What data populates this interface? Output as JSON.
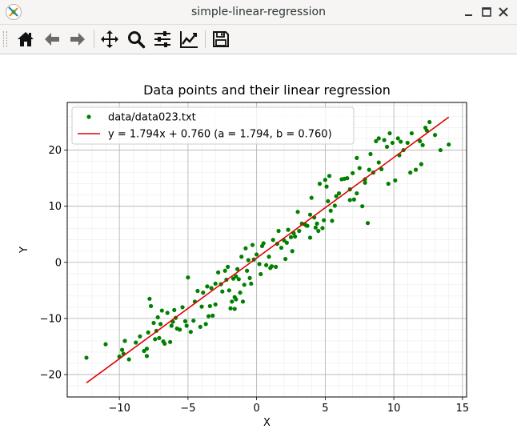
{
  "window": {
    "title": "simple-linear-regression",
    "controls": [
      "minimize",
      "maximize",
      "close"
    ]
  },
  "toolbar": {
    "buttons": [
      {
        "name": "home-button",
        "icon": "home-icon",
        "tooltip": "Home"
      },
      {
        "name": "back-button",
        "icon": "arrow-left-icon",
        "tooltip": "Back"
      },
      {
        "name": "forward-button",
        "icon": "arrow-right-icon",
        "tooltip": "Forward"
      },
      {
        "name": "pan-button",
        "icon": "move-icon",
        "tooltip": "Pan"
      },
      {
        "name": "zoom-button",
        "icon": "magnifier-icon",
        "tooltip": "Zoom"
      },
      {
        "name": "subplots-button",
        "icon": "sliders-icon",
        "tooltip": "Subplots"
      },
      {
        "name": "axes-button",
        "icon": "line-chart-icon",
        "tooltip": "Customize"
      },
      {
        "name": "save-button",
        "icon": "floppy-icon",
        "tooltip": "Save"
      }
    ]
  },
  "colors": {
    "points": "#008000",
    "fit_line": "#e00000",
    "grid_major": "#b0b0b0",
    "grid_minor": "#ececec"
  },
  "chart_data": {
    "type": "scatter",
    "title": "Data points and their linear regression",
    "xlabel": "X",
    "ylabel": "Y",
    "xlim": [
      -13.8,
      15.3
    ],
    "ylim": [
      -24,
      28.5
    ],
    "xticks": [
      -10,
      -5,
      0,
      5,
      10,
      15
    ],
    "yticks": [
      -20,
      -10,
      0,
      10,
      20
    ],
    "grid": "major and minor",
    "legend": "top-left",
    "series": [
      {
        "name": "data/data023.txt",
        "kind": "points",
        "x": [
          -12.4,
          -11.0,
          -9.8,
          -9.7,
          -9.6,
          -8.8,
          -8.5,
          -8.2,
          -8.0,
          -7.9,
          -7.8,
          -7.7,
          -7.5,
          -7.3,
          -7.2,
          -7.1,
          -7.0,
          -6.9,
          -6.7,
          -6.5,
          -6.3,
          -6.1,
          -6.0,
          -5.8,
          -5.6,
          -5.4,
          -5.2,
          -5.1,
          -5.0,
          -4.8,
          -4.5,
          -4.3,
          -4.1,
          -3.9,
          -3.7,
          -3.6,
          -3.5,
          -3.4,
          -3.3,
          -3.2,
          -3.0,
          -2.8,
          -2.6,
          -2.5,
          -2.3,
          -2.1,
          -2.0,
          -1.9,
          -1.8,
          -1.7,
          -1.6,
          -1.5,
          -1.4,
          -1.3,
          -1.2,
          -1.1,
          -1.0,
          -0.9,
          -0.8,
          -0.7,
          -0.6,
          -0.5,
          -0.4,
          -0.2,
          0.0,
          0.2,
          0.3,
          0.5,
          0.7,
          0.9,
          1.0,
          1.2,
          1.4,
          1.5,
          1.6,
          1.8,
          2.0,
          2.1,
          2.3,
          2.5,
          2.6,
          2.8,
          3.0,
          3.1,
          3.3,
          3.5,
          3.7,
          3.9,
          4.0,
          4.2,
          4.4,
          4.5,
          4.6,
          4.8,
          5.0,
          5.1,
          5.3,
          5.5,
          5.7,
          5.8,
          6.0,
          6.2,
          6.4,
          6.6,
          6.8,
          7.0,
          7.1,
          7.3,
          7.5,
          7.7,
          7.9,
          8.1,
          8.3,
          8.5,
          8.7,
          8.9,
          9.1,
          9.3,
          9.5,
          9.7,
          9.9,
          10.1,
          10.3,
          10.5,
          10.7,
          11.0,
          11.3,
          11.6,
          11.9,
          12.1,
          12.3,
          12.6,
          13.0,
          13.4,
          14.0,
          -8.0,
          -6.2,
          -4.6,
          -3.0,
          -1.6,
          0.4,
          2.2,
          3.9,
          5.4,
          7.3,
          8.9,
          10.4,
          12.0,
          -9.3,
          -7.4,
          -5.9,
          -2.2,
          1.1,
          2.7,
          4.9,
          6.8,
          9.6,
          11.2,
          -6.8,
          -0.3,
          3.6,
          8.2,
          12.4,
          -10.0,
          -1.5,
          5.2,
          7.9,
          -4.0,
          4.3
        ],
        "y": [
          -17.0,
          -14.6,
          -15.6,
          -16.3,
          -14.0,
          -14.3,
          -13.2,
          -15.8,
          -16.7,
          -12.5,
          -6.5,
          -7.8,
          -10.8,
          -12.2,
          -9.8,
          -13.5,
          -11.0,
          -8.6,
          -14.5,
          -9.0,
          -14.2,
          -10.6,
          -8.5,
          -11.8,
          -12.0,
          -8.0,
          -10.5,
          -11.3,
          -2.7,
          -12.4,
          -7.0,
          -5.1,
          -11.5,
          -5.4,
          -11.0,
          -4.3,
          -9.6,
          -7.8,
          -4.6,
          -9.5,
          -7.5,
          -1.8,
          -3.9,
          -5.2,
          -1.5,
          -0.8,
          -5.0,
          -8.2,
          -7.0,
          -2.9,
          -8.3,
          -6.6,
          -1.2,
          -3.0,
          -5.4,
          1.0,
          -7.0,
          -4.0,
          2.5,
          -1.5,
          0.4,
          -2.8,
          -3.8,
          0.5,
          1.4,
          -0.3,
          -2.1,
          3.4,
          -0.5,
          1.0,
          -1.0,
          4.0,
          -0.8,
          3.3,
          5.6,
          2.6,
          3.9,
          0.6,
          5.8,
          4.5,
          2.0,
          4.6,
          9.0,
          5.6,
          6.9,
          6.8,
          6.5,
          8.5,
          11.5,
          8.0,
          6.9,
          5.6,
          14.0,
          6.1,
          14.7,
          13.5,
          15.4,
          7.4,
          10.1,
          11.8,
          12.3,
          14.8,
          14.9,
          15.0,
          13.0,
          15.9,
          11.2,
          18.6,
          16.8,
          10.0,
          14.8,
          7.0,
          19.3,
          16.0,
          21.6,
          22.1,
          16.6,
          21.8,
          20.6,
          23.0,
          21.3,
          14.6,
          22.1,
          21.5,
          20.0,
          21.3,
          23.0,
          16.5,
          21.6,
          20.9,
          24.0,
          25.0,
          22.7,
          20.0,
          21.0,
          -15.4,
          -11.3,
          -10.4,
          -3.8,
          -6.2,
          2.9,
          3.5,
          4.4,
          9.2,
          12.3,
          17.8,
          19.1,
          17.5,
          -17.3,
          -13.7,
          -9.9,
          -3.1,
          -0.7,
          5.2,
          7.5,
          11.1,
          14.0,
          16.0,
          -14.1,
          3.1,
          6.6,
          16.5,
          23.5,
          -16.8,
          -2.5,
          10.9,
          14.2,
          -7.9,
          6.2
        ]
      },
      {
        "name": "y = 1.794x + 0.760 (a = 1.794, b = 0.760)",
        "kind": "line",
        "slope": 1.794,
        "intercept": 0.76,
        "x": [
          -12.4,
          14.0
        ]
      }
    ]
  }
}
